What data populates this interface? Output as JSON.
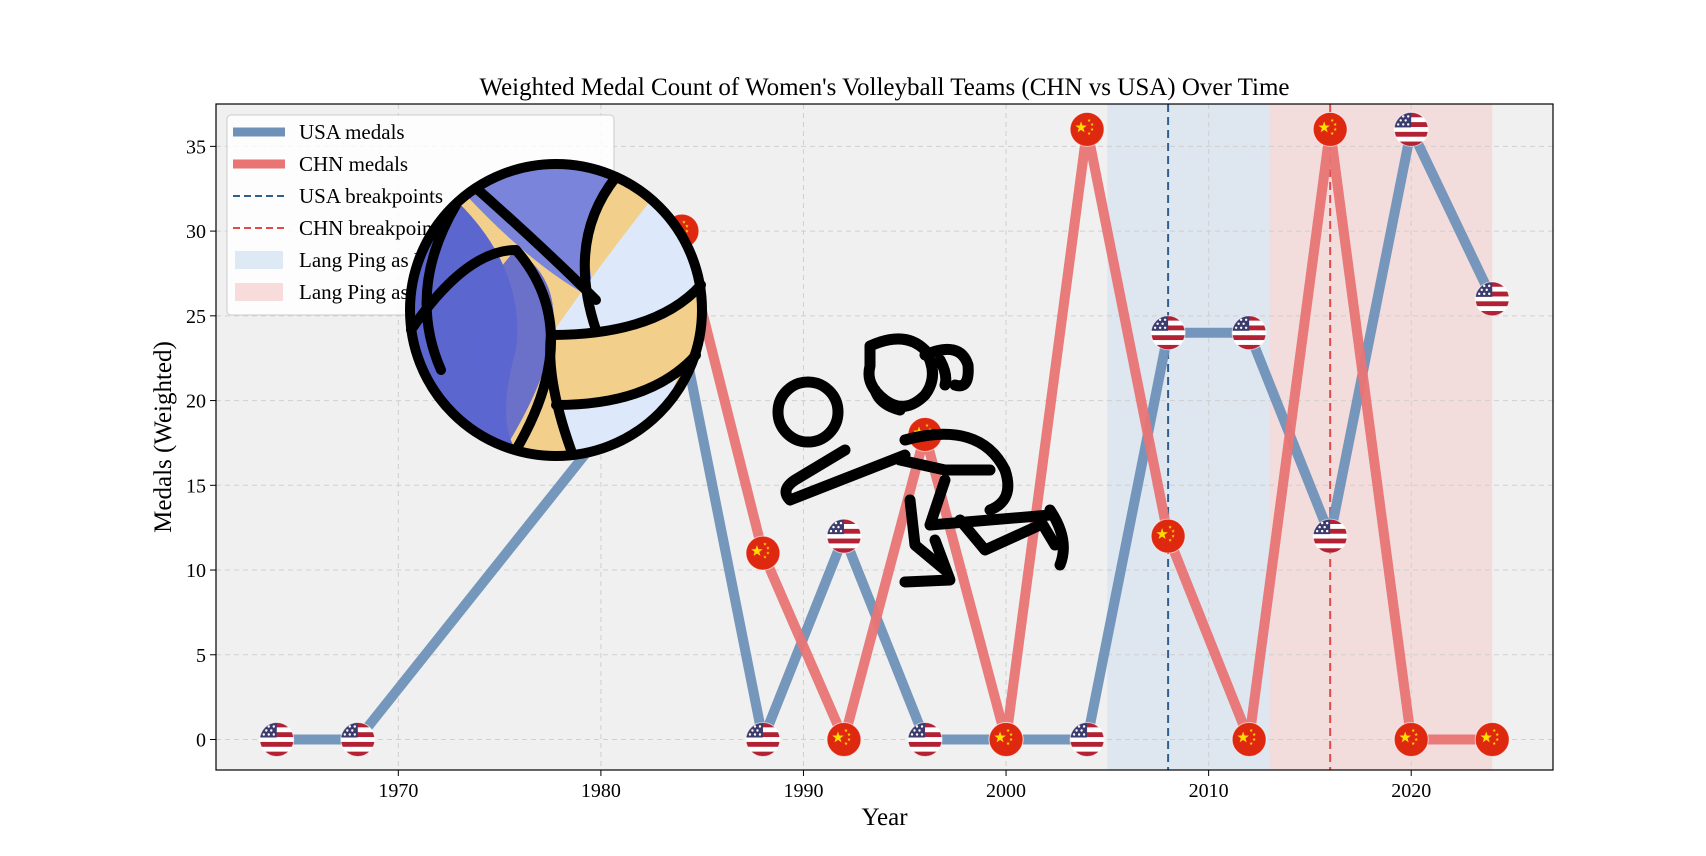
{
  "chart_data": {
    "type": "line",
    "title": "Weighted Medal Count of Women's Volleyball Teams (CHN vs USA) Over Time",
    "xlabel": "Year",
    "ylabel": "Medals (Weighted)",
    "xlim": [
      1961,
      2027
    ],
    "ylim": [
      -1.8,
      37.5
    ],
    "xticks": [
      1970,
      1980,
      1990,
      2000,
      2010,
      2020
    ],
    "yticks": [
      0,
      5,
      10,
      15,
      20,
      25,
      30,
      35
    ],
    "grid": true,
    "legend_position": "upper-left",
    "series": [
      {
        "name": "USA medals",
        "color": "#6f91b8",
        "marker": "usa-flag",
        "x": [
          1964,
          1968,
          1984,
          1988,
          1992,
          1996,
          2000,
          2004,
          2008,
          2012,
          2016,
          2020,
          2024
        ],
        "values": [
          0,
          0,
          24,
          0,
          12,
          0,
          0,
          0,
          24,
          24,
          12,
          36,
          26
        ]
      },
      {
        "name": "CHN medals",
        "color": "#e87474",
        "marker": "chn-flag",
        "x": [
          1984,
          1988,
          1992,
          1996,
          2000,
          2004,
          2008,
          2012,
          2016,
          2020,
          2024
        ],
        "values": [
          30,
          11,
          0,
          18,
          0,
          36,
          12,
          0,
          36,
          0,
          0
        ]
      }
    ],
    "breakpoints": [
      {
        "name": "USA breakpoints",
        "x": 2008,
        "color": "#2f5f8f"
      },
      {
        "name": "CHN breakpoints",
        "x": 2016,
        "color": "#e04a4a"
      }
    ],
    "spans": [
      {
        "name": "Lang Ping as USA coach",
        "x0": 2005,
        "x1": 2013,
        "color": "#cfdff0"
      },
      {
        "name": "Lang Ping as CHN coach",
        "x0": 2013,
        "x1": 2024,
        "color": "#f5cccc"
      }
    ],
    "legend": [
      {
        "label": "USA medals",
        "style": "line",
        "color": "#6f91b8"
      },
      {
        "label": "CHN medals",
        "style": "line",
        "color": "#e87474"
      },
      {
        "label": "USA breakpoints",
        "style": "dash",
        "color": "#2f5f8f"
      },
      {
        "label": "CHN breakpoints",
        "style": "dash",
        "color": "#e04a4a"
      },
      {
        "label": "Lang Ping as USA coach",
        "style": "patch",
        "color": "#cfdff0"
      },
      {
        "label": "Lang Ping as CHN coach",
        "style": "patch",
        "color": "#f5cccc"
      }
    ],
    "decorations": [
      "volleyball-icon",
      "volleyball-player-icon"
    ]
  }
}
